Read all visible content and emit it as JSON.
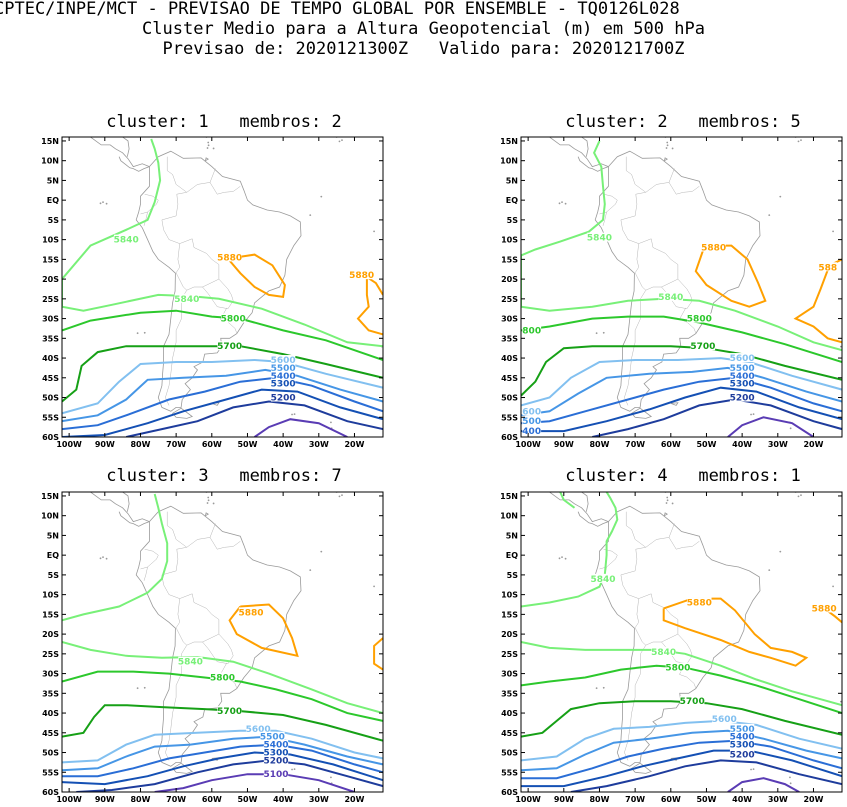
{
  "header": {
    "line1": "CPTEC/INPE/MCT - PREVISAO DE TEMPO GLOBAL POR ENSEMBLE - TQ0126L028",
    "line2": "Cluster Medio para a Altura Geopotencial (m) em 500 hPa",
    "line3": "Previsao de: 2020121300Z   Valido para: 2020121700Z"
  },
  "axes": {
    "lat_labels": [
      "15N",
      "10N",
      "5N",
      "EQ",
      "5S",
      "10S",
      "15S",
      "20S",
      "25S",
      "30S",
      "35S",
      "40S",
      "45S",
      "50S",
      "55S",
      "60S"
    ],
    "lon_labels": [
      "100W",
      "90W",
      "80W",
      "70W",
      "60W",
      "50W",
      "40W",
      "30W",
      "20W"
    ]
  },
  "colors": {
    "c5880": "#ffa000",
    "c5840": "#78f078",
    "c5800": "#2cc82c",
    "c5700": "#16a016",
    "c5600": "#82c0f0",
    "c5500": "#4696e6",
    "c5400": "#2a6ed6",
    "c5300": "#1450b4",
    "c5200": "#1e3c9c",
    "c5100": "#5a3cb4"
  },
  "panels": [
    {
      "title": "cluster: 1   membros: 2",
      "labels": [
        {
          "text": "5840",
          "lon": -84,
          "lat": -10,
          "color": "c5840"
        },
        {
          "text": "5880",
          "lon": -55,
          "lat": -14.5,
          "color": "c5880"
        },
        {
          "text": "5880",
          "lon": -18,
          "lat": -19,
          "color": "c5880"
        },
        {
          "text": "5840",
          "lon": -67,
          "lat": -25,
          "color": "c5840"
        },
        {
          "text": "5800",
          "lon": -54,
          "lat": -30,
          "color": "c5800"
        },
        {
          "text": "5700",
          "lon": -55,
          "lat": -37,
          "color": "c5700"
        },
        {
          "text": "5600",
          "lon": -40,
          "lat": -40.5,
          "color": "c5600"
        },
        {
          "text": "5500",
          "lon": -40,
          "lat": -42.5,
          "color": "c5500"
        },
        {
          "text": "5400",
          "lon": -40,
          "lat": -44.5,
          "color": "c5400"
        },
        {
          "text": "5300",
          "lon": -40,
          "lat": -46.5,
          "color": "c5300"
        },
        {
          "text": "5200",
          "lon": -40,
          "lat": -50,
          "color": "c5200"
        }
      ]
    },
    {
      "title": "cluster: 2   membros: 5",
      "labels": [
        {
          "text": "5840",
          "lon": -80,
          "lat": -9.5,
          "color": "c5840"
        },
        {
          "text": "5880",
          "lon": -48,
          "lat": -12,
          "color": "c5880"
        },
        {
          "text": "588",
          "lon": -16,
          "lat": -17,
          "color": "c5880"
        },
        {
          "text": "5840",
          "lon": -60,
          "lat": -24.5,
          "color": "c5840"
        },
        {
          "text": "5800",
          "lon": -52,
          "lat": -30,
          "color": "c5800"
        },
        {
          "text": "800",
          "lon": -99,
          "lat": -33,
          "color": "c5800"
        },
        {
          "text": "5700",
          "lon": -51,
          "lat": -37,
          "color": "c5700"
        },
        {
          "text": "5600",
          "lon": -40,
          "lat": -40,
          "color": "c5600"
        },
        {
          "text": "5500",
          "lon": -40,
          "lat": -42.5,
          "color": "c5500"
        },
        {
          "text": "5400",
          "lon": -40,
          "lat": -44.5,
          "color": "c5400"
        },
        {
          "text": "5300",
          "lon": -40,
          "lat": -46.5,
          "color": "c5300"
        },
        {
          "text": "5200",
          "lon": -40,
          "lat": -50,
          "color": "c5200"
        },
        {
          "text": "600",
          "lon": -99,
          "lat": -53.5,
          "color": "c5600"
        },
        {
          "text": "500",
          "lon": -99,
          "lat": -56,
          "color": "c5500"
        },
        {
          "text": "400",
          "lon": -99,
          "lat": -58.5,
          "color": "c5400"
        }
      ]
    },
    {
      "title": "cluster: 3   membros: 7",
      "labels": [
        {
          "text": "5880",
          "lon": -49,
          "lat": -14.5,
          "color": "c5880"
        },
        {
          "text": "5840",
          "lon": -66,
          "lat": -27,
          "color": "c5840"
        },
        {
          "text": "5800",
          "lon": -57,
          "lat": -31,
          "color": "c5800"
        },
        {
          "text": "5700",
          "lon": -55,
          "lat": -39.5,
          "color": "c5700"
        },
        {
          "text": "5600",
          "lon": -47,
          "lat": -44,
          "color": "c5600"
        },
        {
          "text": "5500",
          "lon": -43,
          "lat": -46,
          "color": "c5500"
        },
        {
          "text": "5400",
          "lon": -42,
          "lat": -48,
          "color": "c5400"
        },
        {
          "text": "5300",
          "lon": -42,
          "lat": -50,
          "color": "c5300"
        },
        {
          "text": "5200",
          "lon": -42,
          "lat": -52,
          "color": "c5200"
        },
        {
          "text": "5100",
          "lon": -42,
          "lat": -55.5,
          "color": "c5100"
        }
      ]
    },
    {
      "title": "cluster: 4   membros: 1",
      "labels": [
        {
          "text": "5840",
          "lon": -79,
          "lat": -6,
          "color": "c5840"
        },
        {
          "text": "5880",
          "lon": -52,
          "lat": -12,
          "color": "c5880"
        },
        {
          "text": "5880",
          "lon": -17,
          "lat": -13.5,
          "color": "c5880"
        },
        {
          "text": "5840",
          "lon": -62,
          "lat": -24.5,
          "color": "c5840"
        },
        {
          "text": "5800",
          "lon": -58,
          "lat": -28.5,
          "color": "c5800"
        },
        {
          "text": "5700",
          "lon": -54,
          "lat": -37,
          "color": "c5700"
        },
        {
          "text": "5600",
          "lon": -45,
          "lat": -41.5,
          "color": "c5600"
        },
        {
          "text": "5500",
          "lon": -40,
          "lat": -44,
          "color": "c5500"
        },
        {
          "text": "5400",
          "lon": -40,
          "lat": -46,
          "color": "c5400"
        },
        {
          "text": "5300",
          "lon": -40,
          "lat": -48,
          "color": "c5300"
        },
        {
          "text": "5200",
          "lon": -40,
          "lat": -50.5,
          "color": "c5200"
        }
      ]
    }
  ]
}
